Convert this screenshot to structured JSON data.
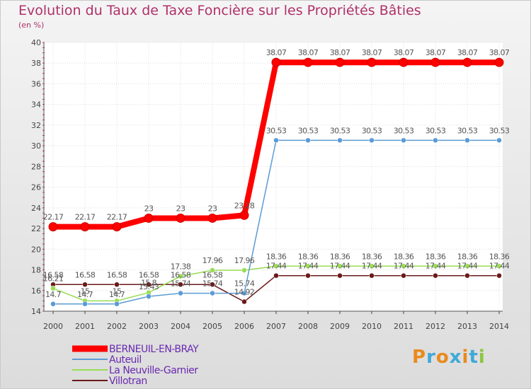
{
  "chart_data": {
    "type": "line",
    "title": "Evolution du Taux de Taxe Foncière sur les Propriétés Bâties",
    "ylabel": "(en %)",
    "xlabel": "",
    "ylim": [
      14,
      40
    ],
    "yticks": [
      14,
      16,
      18,
      20,
      22,
      24,
      26,
      28,
      30,
      32,
      34,
      36,
      38,
      40
    ],
    "x": [
      "2000",
      "2001",
      "2002",
      "2003",
      "2004",
      "2005",
      "2006",
      "2007",
      "2008",
      "2009",
      "2010",
      "2011",
      "2012",
      "2013",
      "2014"
    ],
    "series": [
      {
        "name": "BERNEUIL-EN-BRAY",
        "color": "#ff0000",
        "values": [
          22.17,
          22.17,
          22.17,
          23,
          23,
          23,
          23.28,
          38.07,
          38.07,
          38.07,
          38.07,
          38.07,
          38.07,
          38.07,
          38.07
        ],
        "labels": [
          "22.17",
          "22.17",
          "22.17",
          "23",
          "23",
          "23",
          "23.28",
          "38.07",
          "38.07",
          "38.07",
          "38.07",
          "38.07",
          "38.07",
          "38.07",
          "38.07"
        ]
      },
      {
        "name": "Auteuil",
        "color": "#5b9bd5",
        "values": [
          14.7,
          14.7,
          14.7,
          15.43,
          15.74,
          15.74,
          15.74,
          30.53,
          30.53,
          30.53,
          30.53,
          30.53,
          30.53,
          30.53,
          30.53
        ],
        "labels": [
          "14.7",
          "14.7",
          "14.7",
          "15.43",
          "15.74",
          "15.74",
          "15.74",
          "30.53",
          "30.53",
          "30.53",
          "30.53",
          "30.53",
          "30.53",
          "30.53",
          "30.53"
        ]
      },
      {
        "name": "La Neuville-Garnier",
        "color": "#99dd55",
        "values": [
          16.21,
          15,
          15,
          15.8,
          17.38,
          17.96,
          17.96,
          18.36,
          18.36,
          18.36,
          18.36,
          18.36,
          18.36,
          18.36,
          18.36
        ],
        "labels": [
          "16.21",
          "15",
          "15",
          "15.8",
          "17.38",
          "17.96",
          "17.96",
          "18.36",
          "18.36",
          "18.36",
          "18.36",
          "18.36",
          "18.36",
          "18.36",
          "18.36"
        ]
      },
      {
        "name": "Villotran",
        "color": "#6b1a1a",
        "values": [
          16.58,
          16.58,
          16.58,
          16.58,
          16.58,
          16.58,
          14.92,
          17.44,
          17.44,
          17.44,
          17.44,
          17.44,
          17.44,
          17.44,
          17.44
        ],
        "labels": [
          "16.58",
          "16.58",
          "16.58",
          "16.58",
          "16.58",
          "16.58",
          "14.92",
          "17.44",
          "17.44",
          "17.44",
          "17.44",
          "17.44",
          "17.44",
          "17.44",
          "17.44"
        ]
      }
    ],
    "legend": "bottom-left",
    "grid": true
  },
  "logo": {
    "text": "Proxiti",
    "colors": [
      "#e98a1d",
      "#3fa9d8",
      "#e98a1d",
      "#3fa9d8",
      "#e98a1d",
      "#3fa9d8",
      "#8cc63f"
    ]
  }
}
